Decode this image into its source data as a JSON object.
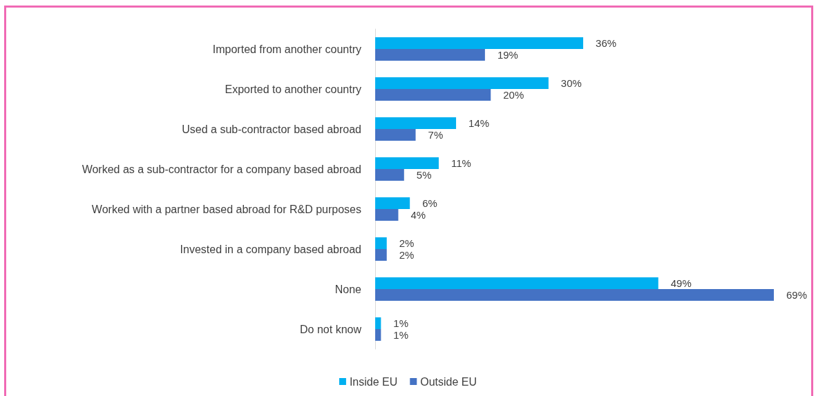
{
  "chart_data": {
    "type": "bar",
    "orientation": "horizontal",
    "categories": [
      "Imported from another country",
      "Exported to another country",
      "Used a sub-contractor based abroad",
      "Worked as a sub-contractor for a company based abroad",
      "Worked with a partner based abroad for R&D purposes",
      "Invested in a company based abroad",
      "None",
      "Do not know"
    ],
    "series": [
      {
        "name": "Inside EU",
        "color": "#00b0f0",
        "values": [
          36,
          30,
          14,
          11,
          6,
          2,
          49,
          1
        ],
        "value_labels": [
          "36%",
          "30%",
          "14%",
          "11%",
          "6%",
          "2%",
          "49%",
          "1%"
        ]
      },
      {
        "name": "Outside EU",
        "color": "#4472c4",
        "values": [
          19,
          20,
          7,
          5,
          4,
          2,
          69,
          1
        ],
        "value_labels": [
          "19%",
          "20%",
          "7%",
          "5%",
          "4%",
          "2%",
          "69%",
          "1%"
        ]
      }
    ],
    "legend": "bottom"
  }
}
